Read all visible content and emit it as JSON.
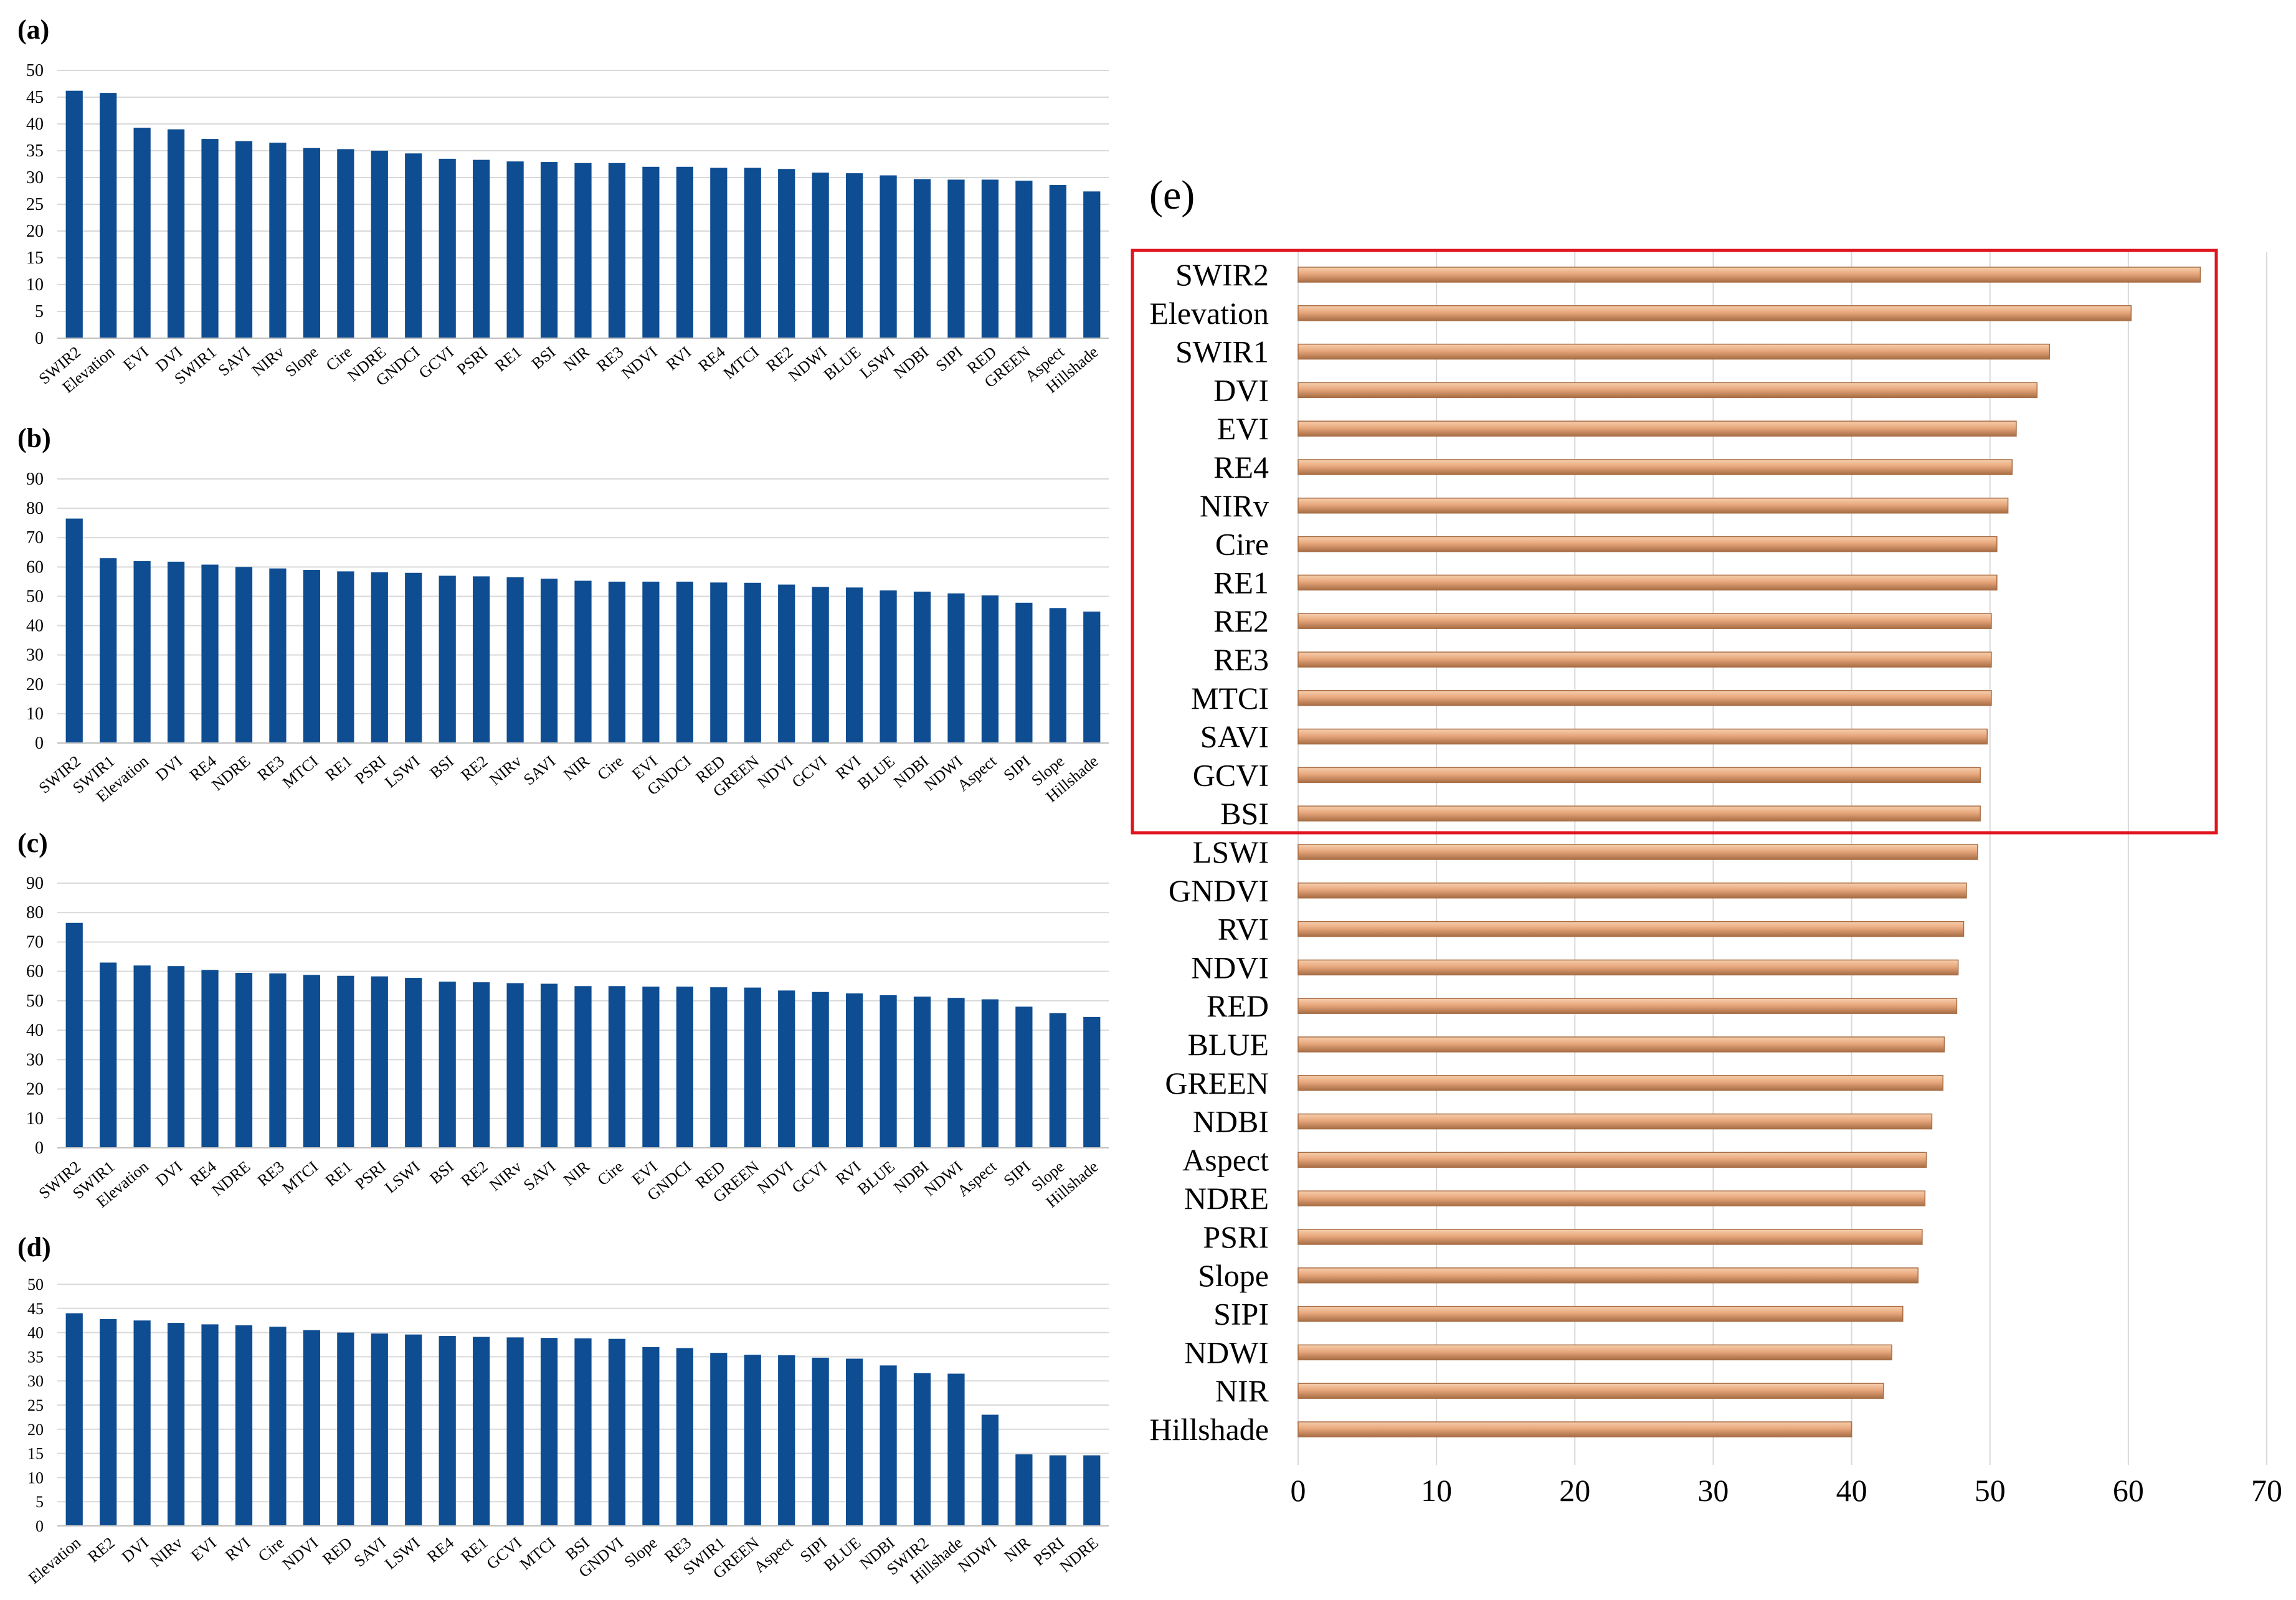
{
  "colors": {
    "bar_blue": "#0E4D92",
    "bar_orange": "#E8A77C",
    "bar_orange_light": "#F6CFAE",
    "bar_orange_dark": "#A86E45",
    "grid": "#D9D9D9",
    "highlight_box": "#E0141E"
  },
  "chart_data": [
    {
      "id": "a",
      "type": "bar",
      "panel_label": "(a)",
      "categories": [
        "SWIR2",
        "Elevation",
        "EVI",
        "DVI",
        "SWIR1",
        "SAVI",
        "NIRv",
        "Slope",
        "Cire",
        "NDRE",
        "GNDCI",
        "GCVI",
        "PSRI",
        "RE1",
        "BSI",
        "NIR",
        "RE3",
        "NDVI",
        "RVI",
        "RE4",
        "MTCI",
        "RE2",
        "NDWI",
        "BLUE",
        "LSWI",
        "NDBI",
        "SIPI",
        "RED",
        "GREEN",
        "Aspect",
        "Hillshade"
      ],
      "values": [
        46.2,
        45.8,
        39.3,
        39.0,
        37.2,
        36.8,
        36.5,
        35.5,
        35.3,
        35.0,
        34.5,
        33.5,
        33.3,
        33.0,
        32.9,
        32.7,
        32.7,
        32.0,
        32.0,
        31.8,
        31.8,
        31.6,
        30.9,
        30.8,
        30.4,
        29.7,
        29.6,
        29.6,
        29.4,
        28.6,
        27.4
      ],
      "yticks": [
        "0",
        "5",
        "10",
        "15",
        "20",
        "25",
        "30",
        "35",
        "40",
        "45",
        "50"
      ],
      "ylim": [
        0,
        50
      ]
    },
    {
      "id": "b",
      "type": "bar",
      "panel_label": "(b)",
      "categories": [
        "SWIR2",
        "SWIR1",
        "Elevation",
        "DVI",
        "RE4",
        "NDRE",
        "RE3",
        "MTCI",
        "RE1",
        "PSRI",
        "LSWI",
        "BSI",
        "RE2",
        "NIRv",
        "SAVI",
        "NIR",
        "Cire",
        "EVI",
        "GNDCI",
        "RED",
        "GREEN",
        "NDVI",
        "GCVI",
        "RVI",
        "BLUE",
        "NDBI",
        "NDWI",
        "Aspect",
        "SIPI",
        "Slope",
        "Hillshade"
      ],
      "values": [
        76.5,
        63.0,
        62.0,
        61.8,
        60.8,
        60.0,
        59.5,
        59.0,
        58.5,
        58.2,
        58.0,
        57.0,
        56.8,
        56.5,
        56.0,
        55.3,
        55.0,
        55.0,
        55.0,
        54.7,
        54.6,
        54.0,
        53.2,
        53.0,
        52.0,
        51.6,
        51.0,
        50.3,
        47.8,
        46.0,
        44.8
      ],
      "yticks": [
        "0",
        "10",
        "20",
        "30",
        "40",
        "50",
        "60",
        "70",
        "80",
        "90"
      ],
      "ylim": [
        0,
        90
      ]
    },
    {
      "id": "c",
      "type": "bar",
      "panel_label": "(c)",
      "categories": [
        "SWIR2",
        "SWIR1",
        "Elevation",
        "DVI",
        "RE4",
        "NDRE",
        "RE3",
        "MTCI",
        "RE1",
        "PSRI",
        "LSWI",
        "BSI",
        "RE2",
        "NIRv",
        "SAVI",
        "NIR",
        "Cire",
        "EVI",
        "GNDCI",
        "RED",
        "GREEN",
        "NDVI",
        "GCVI",
        "RVI",
        "BLUE",
        "NDBI",
        "NDWI",
        "Aspect",
        "SIPI",
        "Slope",
        "Hillshade"
      ],
      "values": [
        76.5,
        63.0,
        62.0,
        61.8,
        60.5,
        59.5,
        59.3,
        58.8,
        58.5,
        58.3,
        57.8,
        56.5,
        56.3,
        56.0,
        55.8,
        55.0,
        55.0,
        54.8,
        54.8,
        54.6,
        54.5,
        53.5,
        53.0,
        52.5,
        51.9,
        51.4,
        51.0,
        50.5,
        48.0,
        45.8,
        44.5
      ],
      "yticks": [
        "0",
        "10",
        "20",
        "30",
        "40",
        "50",
        "60",
        "70",
        "80",
        "90"
      ],
      "ylim": [
        0,
        90
      ]
    },
    {
      "id": "d",
      "type": "bar",
      "panel_label": "(d)",
      "categories": [
        "Elevation",
        "RE2",
        "DVI",
        "NIRv",
        "EVI",
        "RVI",
        "Cire",
        "NDVI",
        "RED",
        "SAVI",
        "LSWI",
        "RE4",
        "RE1",
        "GCVI",
        "MTCI",
        "BSI",
        "GNDVI",
        "Slope",
        "RE3",
        "SWIR1",
        "GREEN",
        "Aspect",
        "SIPI",
        "BLUE",
        "NDBI",
        "SWIR2",
        "Hillshade",
        "NDWI",
        "NIR",
        "PSRI",
        "NDRE"
      ],
      "values": [
        44.0,
        42.8,
        42.5,
        42.0,
        41.7,
        41.5,
        41.2,
        40.5,
        40.0,
        39.8,
        39.6,
        39.3,
        39.1,
        39.0,
        38.9,
        38.8,
        38.7,
        37.0,
        36.8,
        35.8,
        35.4,
        35.3,
        34.8,
        34.6,
        33.2,
        31.6,
        31.5,
        23.0,
        14.8,
        14.6,
        14.6
      ],
      "yticks": [
        "0",
        "5",
        "10",
        "15",
        "20",
        "25",
        "30",
        "35",
        "40",
        "45",
        "50"
      ],
      "ylim": [
        0,
        50
      ]
    },
    {
      "id": "e",
      "type": "bar",
      "orientation": "horizontal",
      "panel_label": "(e)",
      "categories": [
        "SWIR2",
        "Elevation",
        "SWIR1",
        "DVI",
        "EVI",
        "RE4",
        "NIRv",
        "Cire",
        "RE1",
        "RE2",
        "RE3",
        "MTCI",
        "SAVI",
        "GCVI",
        "BSI",
        "LSWI",
        "GNDVI",
        "RVI",
        "NDVI",
        "RED",
        "BLUE",
        "GREEN",
        "NDBI",
        "Aspect",
        "NDRE",
        "PSRI",
        "Slope",
        "SIPI",
        "NDWI",
        "NIR",
        "Hillshade"
      ],
      "values": [
        65.2,
        60.2,
        54.3,
        53.4,
        51.9,
        51.6,
        51.3,
        50.5,
        50.5,
        50.1,
        50.1,
        50.1,
        49.8,
        49.3,
        49.3,
        49.1,
        48.3,
        48.1,
        47.7,
        47.6,
        46.7,
        46.6,
        45.8,
        45.4,
        45.3,
        45.1,
        44.8,
        43.7,
        42.9,
        42.3,
        40.0
      ],
      "xticks": [
        "0",
        "10",
        "20",
        "30",
        "40",
        "50",
        "60",
        "70"
      ],
      "xlim": [
        0,
        70
      ],
      "highlighted_top_count": 15
    }
  ]
}
